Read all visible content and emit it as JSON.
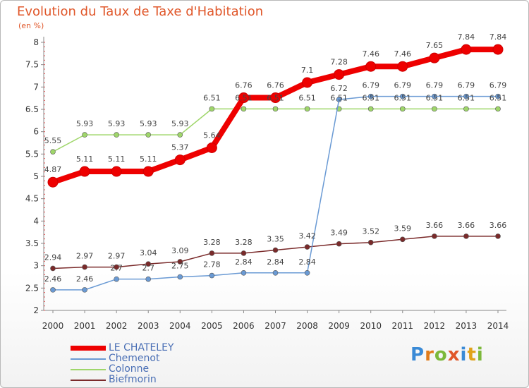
{
  "title": "Evolution du Taux de Taxe d'Habitation",
  "unit": "(en %)",
  "logo": "Proxiti",
  "chart_data": {
    "type": "line",
    "x": [
      "2000",
      "2001",
      "2002",
      "2003",
      "2004",
      "2005",
      "2006",
      "2007",
      "2008",
      "2009",
      "2010",
      "2011",
      "2012",
      "2013",
      "2014"
    ],
    "ylim": [
      2,
      8
    ],
    "yticks": [
      "2",
      "2.5",
      "3",
      "3.5",
      "4",
      "4.5",
      "5",
      "5.5",
      "6",
      "6.5",
      "7",
      "7.5",
      "8"
    ],
    "grid": false,
    "legend_position": "bottom-left",
    "series": [
      {
        "name": "LE CHATELEY",
        "color": "#ee0000",
        "values": [
          4.87,
          5.11,
          5.11,
          5.11,
          5.37,
          5.64,
          6.76,
          6.76,
          7.1,
          7.28,
          7.46,
          7.46,
          7.65,
          7.84,
          7.84
        ],
        "labels": [
          "4.87",
          "5.11",
          "5.11",
          "5.11",
          "5.37",
          "5.64",
          "6.76",
          "6.76",
          "7.1",
          "7.28",
          "7.46",
          "7.46",
          "7.65",
          "7.84",
          "7.84"
        ]
      },
      {
        "name": "Chemenot",
        "color": "#6a9ad4",
        "values": [
          2.46,
          2.46,
          2.7,
          2.7,
          2.75,
          2.78,
          2.84,
          2.84,
          2.84,
          6.72,
          6.79,
          6.79,
          6.79,
          6.79,
          6.79
        ],
        "labels": [
          "2.46",
          "2.46",
          "2.7",
          "2.7",
          "2.75",
          "2.78",
          "2.84",
          "2.84",
          "2.84",
          "6.72",
          "6.79",
          "6.79",
          "6.79",
          "6.79",
          "6.79"
        ]
      },
      {
        "name": "Colonne",
        "color": "#9fd66a",
        "values": [
          5.55,
          5.93,
          5.93,
          5.93,
          5.93,
          6.51,
          6.51,
          6.51,
          6.51,
          6.51,
          6.51,
          6.51,
          6.51,
          6.51,
          6.51
        ],
        "labels": [
          "5.55",
          "5.93",
          "5.93",
          "5.93",
          "5.93",
          "6.51",
          "6.51",
          "6.51",
          "6.51",
          "6.51",
          "6.51",
          "6.51",
          "6.51",
          "6.51",
          "6.51"
        ]
      },
      {
        "name": "Biefmorin",
        "color": "#7a2a2a",
        "values": [
          2.94,
          2.97,
          2.97,
          3.04,
          3.09,
          3.28,
          3.28,
          3.35,
          3.42,
          3.49,
          3.52,
          3.59,
          3.66,
          3.66,
          3.66
        ],
        "labels": [
          "2.94",
          "2.97",
          "2.97",
          "3.04",
          "3.09",
          "3.28",
          "3.28",
          "3.35",
          "3.42",
          "3.49",
          "3.52",
          "3.59",
          "3.66",
          "3.66",
          "3.66"
        ]
      }
    ]
  }
}
